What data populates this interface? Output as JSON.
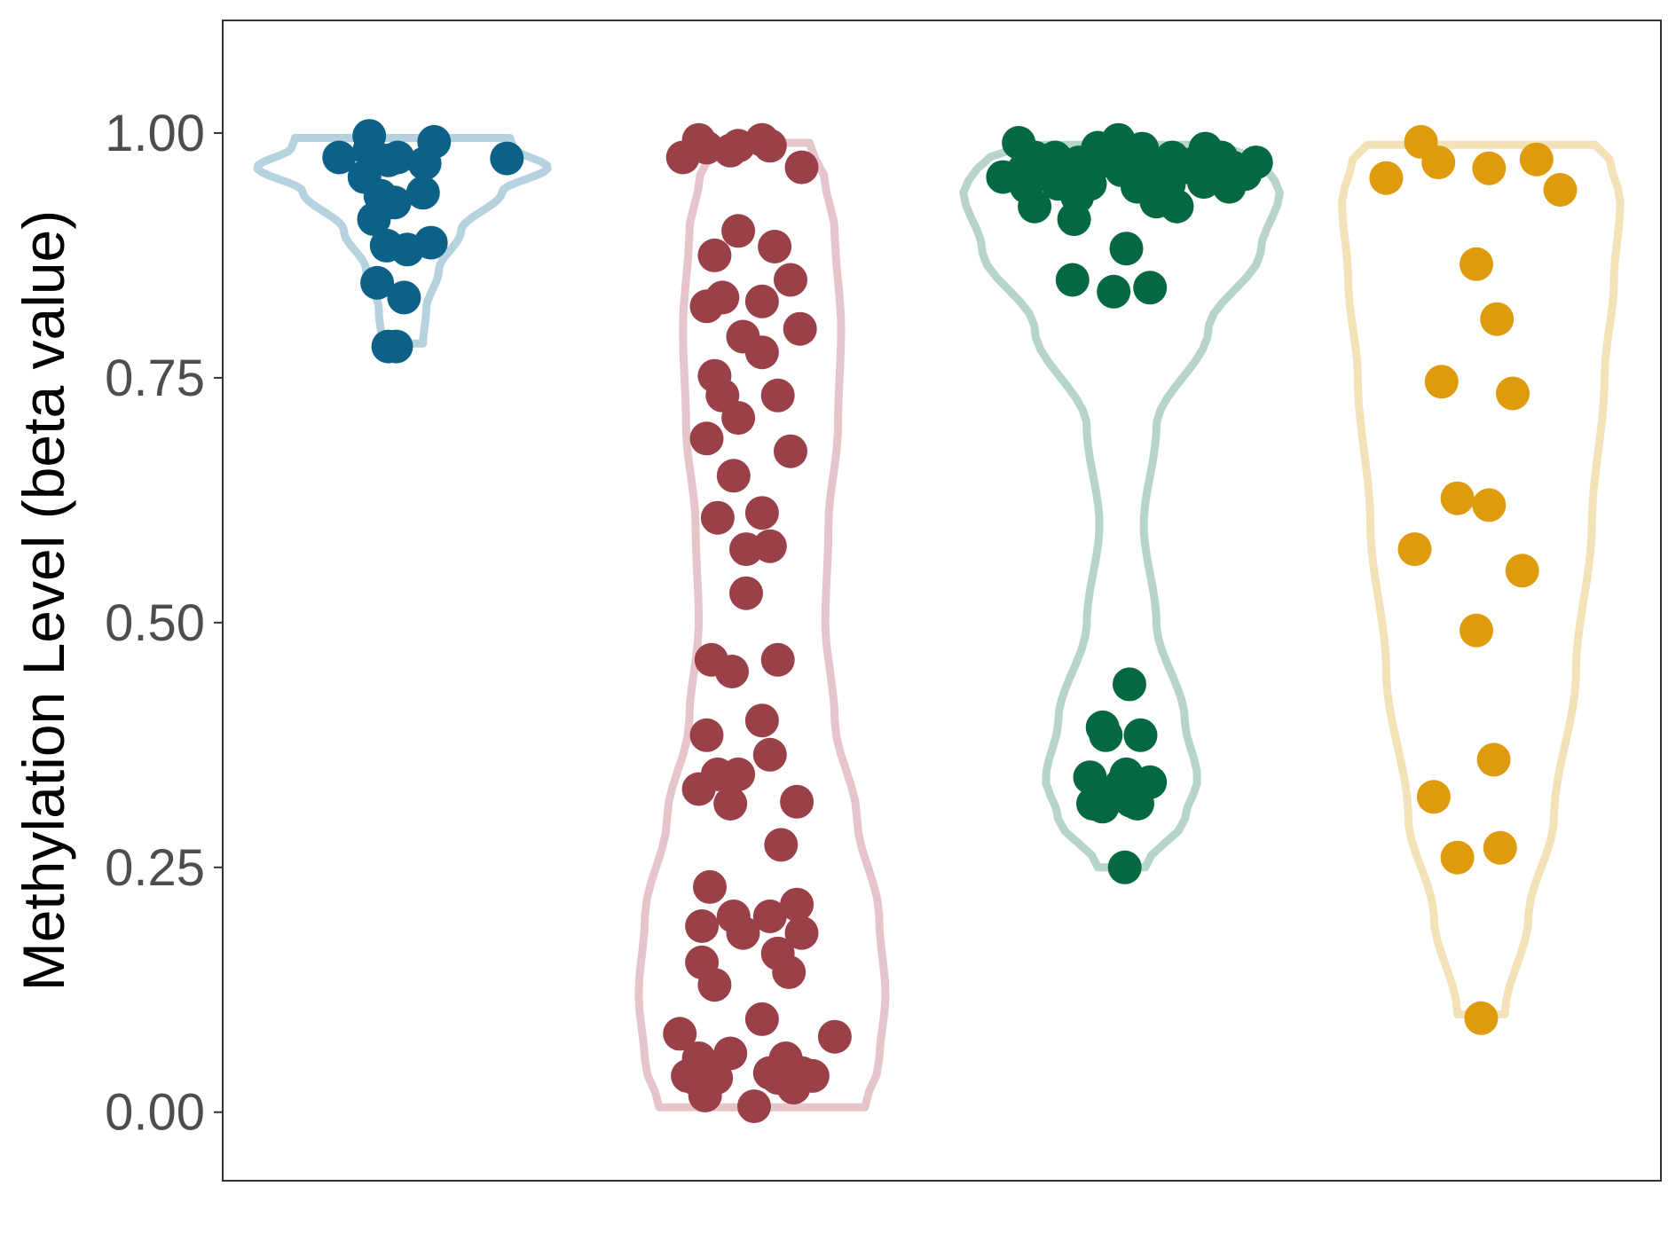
{
  "chart_data": {
    "type": "violin",
    "title": "",
    "xlabel": "",
    "ylabel": "Methylation Level (beta value)",
    "ylim": [
      -0.07,
      1.115
    ],
    "yticks": [
      0,
      0.25,
      0.5,
      0.75,
      1.0
    ],
    "ytick_labels": [
      "0.00",
      "0.25",
      "0.50",
      "0.75",
      "1.00"
    ],
    "grid": false,
    "legend": "none",
    "series": [
      {
        "color": "#0b6187",
        "violin_color": "#b7d2df",
        "range": [
          0.785,
          0.995
        ],
        "violin_profile": [
          [
            0.785,
            0.13
          ],
          [
            0.82,
            0.15
          ],
          [
            0.86,
            0.23
          ],
          [
            0.9,
            0.37
          ],
          [
            0.94,
            0.63
          ],
          [
            0.965,
            0.92
          ],
          [
            0.985,
            0.7
          ],
          [
            0.995,
            0.68
          ]
        ],
        "points": [
          [
            -0.4,
            0.975
          ],
          [
            -0.21,
            0.997
          ],
          [
            -0.21,
            0.982
          ],
          [
            -0.24,
            0.955
          ],
          [
            -0.18,
            0.912
          ],
          [
            -0.14,
            0.936
          ],
          [
            -0.09,
            0.972
          ],
          [
            -0.03,
            0.975
          ],
          [
            0.14,
            0.969
          ],
          [
            0.2,
            0.991
          ],
          [
            0.66,
            0.974
          ],
          [
            -0.05,
            0.929
          ],
          [
            0.13,
            0.939
          ],
          [
            -0.1,
            0.885
          ],
          [
            0.03,
            0.881
          ],
          [
            0.18,
            0.888
          ],
          [
            -0.16,
            0.847
          ],
          [
            0.01,
            0.832
          ],
          [
            -0.09,
            0.782
          ],
          [
            -0.04,
            0.782
          ]
        ]
      },
      {
        "color": "#9a4049",
        "violin_color": "#e5c5c9",
        "range": [
          0.005,
          0.99
        ],
        "violin_profile": [
          [
            0.005,
            0.65
          ],
          [
            0.05,
            0.74
          ],
          [
            0.12,
            0.78
          ],
          [
            0.2,
            0.74
          ],
          [
            0.3,
            0.6
          ],
          [
            0.4,
            0.46
          ],
          [
            0.5,
            0.4
          ],
          [
            0.6,
            0.42
          ],
          [
            0.7,
            0.48
          ],
          [
            0.8,
            0.5
          ],
          [
            0.9,
            0.46
          ],
          [
            0.95,
            0.4
          ],
          [
            0.99,
            0.3
          ]
        ],
        "points": [
          [
            -0.52,
            0.08
          ],
          [
            -0.47,
            0.037
          ],
          [
            -0.42,
            0.034
          ],
          [
            -0.4,
            0.055
          ],
          [
            -0.33,
            0.04
          ],
          [
            -0.29,
            0.035
          ],
          [
            -0.2,
            0.06
          ],
          [
            -0.36,
            0.017
          ],
          [
            0.0,
            0.095
          ],
          [
            0.05,
            0.04
          ],
          [
            0.1,
            0.035
          ],
          [
            0.15,
            0.055
          ],
          [
            0.2,
            0.025
          ],
          [
            0.25,
            0.04
          ],
          [
            0.32,
            0.037
          ],
          [
            0.46,
            0.077
          ],
          [
            -0.05,
            0.006
          ],
          [
            -0.38,
            0.19
          ],
          [
            -0.33,
            0.23
          ],
          [
            -0.18,
            0.2
          ],
          [
            -0.12,
            0.183
          ],
          [
            -0.38,
            0.153
          ],
          [
            -0.3,
            0.13
          ],
          [
            0.05,
            0.2
          ],
          [
            0.1,
            0.162
          ],
          [
            0.22,
            0.212
          ],
          [
            0.17,
            0.143
          ],
          [
            0.25,
            0.183
          ],
          [
            -0.4,
            0.33
          ],
          [
            -0.35,
            0.385
          ],
          [
            -0.28,
            0.345
          ],
          [
            -0.2,
            0.315
          ],
          [
            -0.15,
            0.345
          ],
          [
            0.0,
            0.4
          ],
          [
            0.05,
            0.365
          ],
          [
            0.22,
            0.317
          ],
          [
            0.12,
            0.273
          ],
          [
            -0.32,
            0.462
          ],
          [
            -0.19,
            0.45
          ],
          [
            0.1,
            0.462
          ],
          [
            -0.1,
            0.53
          ],
          [
            -0.1,
            0.575
          ],
          [
            0.05,
            0.578
          ],
          [
            -0.28,
            0.607
          ],
          [
            0.0,
            0.612
          ],
          [
            -0.18,
            0.65
          ],
          [
            -0.35,
            0.688
          ],
          [
            0.18,
            0.675
          ],
          [
            -0.15,
            0.709
          ],
          [
            0.1,
            0.732
          ],
          [
            -0.3,
            0.752
          ],
          [
            -0.25,
            0.732
          ],
          [
            -0.12,
            0.792
          ],
          [
            0.0,
            0.776
          ],
          [
            0.24,
            0.8
          ],
          [
            -0.35,
            0.823
          ],
          [
            -0.25,
            0.832
          ],
          [
            0.0,
            0.828
          ],
          [
            0.18,
            0.85
          ],
          [
            -0.3,
            0.875
          ],
          [
            -0.15,
            0.9
          ],
          [
            0.08,
            0.884
          ],
          [
            -0.5,
            0.975
          ],
          [
            -0.4,
            0.993
          ],
          [
            -0.35,
            0.985
          ],
          [
            -0.2,
            0.982
          ],
          [
            -0.15,
            0.987
          ],
          [
            0.0,
            0.993
          ],
          [
            0.05,
            0.987
          ],
          [
            0.25,
            0.965
          ]
        ]
      },
      {
        "color": "#046941",
        "violin_color": "#b6d4c9",
        "range": [
          0.25,
          0.988
        ],
        "violin_profile": [
          [
            0.25,
            0.15
          ],
          [
            0.3,
            0.4
          ],
          [
            0.34,
            0.48
          ],
          [
            0.4,
            0.4
          ],
          [
            0.5,
            0.22
          ],
          [
            0.6,
            0.14
          ],
          [
            0.7,
            0.22
          ],
          [
            0.8,
            0.55
          ],
          [
            0.88,
            0.88
          ],
          [
            0.94,
            1.0
          ],
          [
            0.97,
            0.9
          ],
          [
            0.988,
            0.6
          ]
        ],
        "points": [
          [
            -0.75,
            0.955
          ],
          [
            -0.65,
            0.99
          ],
          [
            -0.62,
            0.962
          ],
          [
            -0.55,
            0.975
          ],
          [
            -0.5,
            0.962
          ],
          [
            -0.42,
            0.975
          ],
          [
            -0.35,
            0.965
          ],
          [
            -0.27,
            0.97
          ],
          [
            -0.2,
            0.962
          ],
          [
            -0.12,
            0.975
          ],
          [
            -0.05,
            0.97
          ],
          [
            0.0,
            0.962
          ],
          [
            0.05,
            0.975
          ],
          [
            0.12,
            0.965
          ],
          [
            0.18,
            0.97
          ],
          [
            0.25,
            0.962
          ],
          [
            0.32,
            0.975
          ],
          [
            0.4,
            0.965
          ],
          [
            0.47,
            0.97
          ],
          [
            0.55,
            0.962
          ],
          [
            0.63,
            0.975
          ],
          [
            0.7,
            0.965
          ],
          [
            0.78,
            0.958
          ],
          [
            0.85,
            0.97
          ],
          [
            -0.6,
            0.945
          ],
          [
            -0.4,
            0.948
          ],
          [
            -0.2,
            0.948
          ],
          [
            0.1,
            0.945
          ],
          [
            0.3,
            0.948
          ],
          [
            0.52,
            0.95
          ],
          [
            0.68,
            0.945
          ],
          [
            -0.55,
            0.925
          ],
          [
            -0.28,
            0.935
          ],
          [
            0.22,
            0.93
          ],
          [
            0.35,
            0.925
          ],
          [
            -0.3,
            0.912
          ],
          [
            0.03,
            0.882
          ],
          [
            -0.31,
            0.85
          ],
          [
            -0.05,
            0.838
          ],
          [
            0.18,
            0.842
          ],
          [
            -0.02,
            0.993
          ],
          [
            0.13,
            0.984
          ],
          [
            0.53,
            0.984
          ],
          [
            -0.15,
            0.985
          ],
          [
            0.05,
            0.437
          ],
          [
            -0.12,
            0.393
          ],
          [
            -0.1,
            0.385
          ],
          [
            0.12,
            0.385
          ],
          [
            -0.2,
            0.342
          ],
          [
            0.03,
            0.345
          ],
          [
            0.18,
            0.337
          ],
          [
            -0.18,
            0.315
          ],
          [
            -0.12,
            0.312
          ],
          [
            -0.05,
            0.323
          ],
          [
            0.0,
            0.335
          ],
          [
            0.06,
            0.318
          ],
          [
            0.1,
            0.315
          ],
          [
            0.02,
            0.25
          ]
        ]
      },
      {
        "color": "#dd9b0d",
        "violin_color": "#f3e1b7",
        "range": [
          0.1,
          0.988
        ],
        "violin_profile": [
          [
            0.1,
            0.15
          ],
          [
            0.2,
            0.3
          ],
          [
            0.3,
            0.46
          ],
          [
            0.45,
            0.6
          ],
          [
            0.6,
            0.7
          ],
          [
            0.75,
            0.78
          ],
          [
            0.85,
            0.84
          ],
          [
            0.93,
            0.88
          ],
          [
            0.97,
            0.82
          ],
          [
            0.988,
            0.72
          ]
        ],
        "points": [
          [
            -0.6,
            0.954
          ],
          [
            -0.38,
            0.991
          ],
          [
            -0.27,
            0.97
          ],
          [
            0.05,
            0.964
          ],
          [
            0.35,
            0.973
          ],
          [
            0.5,
            0.942
          ],
          [
            -0.03,
            0.866
          ],
          [
            0.1,
            0.81
          ],
          [
            -0.25,
            0.746
          ],
          [
            0.2,
            0.734
          ],
          [
            -0.15,
            0.627
          ],
          [
            0.05,
            0.62
          ],
          [
            -0.42,
            0.575
          ],
          [
            0.26,
            0.553
          ],
          [
            -0.03,
            0.492
          ],
          [
            0.08,
            0.36
          ],
          [
            -0.3,
            0.322
          ],
          [
            -0.15,
            0.26
          ],
          [
            0.12,
            0.27
          ],
          [
            0.0,
            0.096
          ]
        ]
      }
    ]
  }
}
